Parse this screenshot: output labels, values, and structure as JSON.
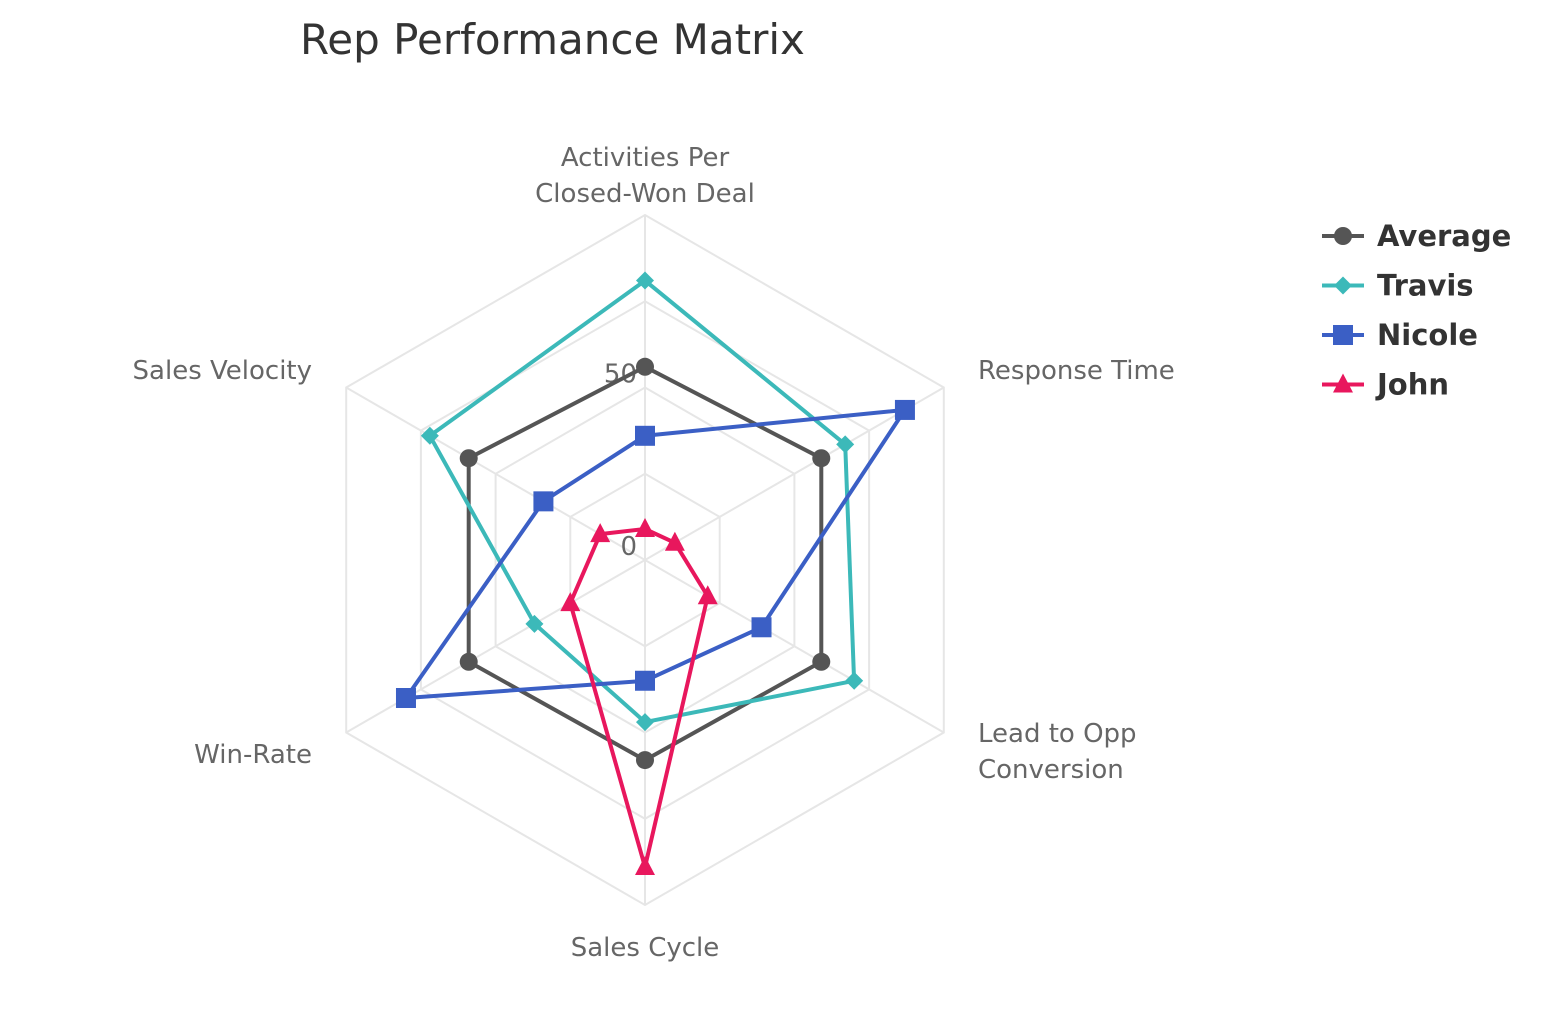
{
  "chart_data": {
    "type": "radar",
    "title": "Rep Performance Matrix",
    "axes": [
      [
        "Activities Per",
        "Closed-Won Deal"
      ],
      [
        "Response Time"
      ],
      [
        "Lead to Opp",
        "Conversion"
      ],
      [
        "Sales Cycle"
      ],
      [
        "Win-Rate"
      ],
      [
        "Sales Velocity"
      ]
    ],
    "rlim": [
      0,
      100
    ],
    "ticks": [
      "0",
      "50"
    ],
    "grid": true,
    "legend_position": "right",
    "series": [
      {
        "name": "Average",
        "color": "#555555",
        "marker": "circle",
        "values": [
          56,
          59,
          59,
          58,
          59,
          59
        ]
      },
      {
        "name": "Travis",
        "color": "#3cb9b9",
        "marker": "diamond",
        "values": [
          81,
          67,
          70,
          47,
          37,
          72
        ]
      },
      {
        "name": "Nicole",
        "color": "#3b5fc5",
        "marker": "square",
        "values": [
          36,
          87,
          39,
          35,
          80,
          34
        ]
      },
      {
        "name": "John",
        "color": "#e8175d",
        "marker": "triangle",
        "values": [
          9,
          10,
          21,
          89,
          25,
          15
        ]
      }
    ]
  }
}
